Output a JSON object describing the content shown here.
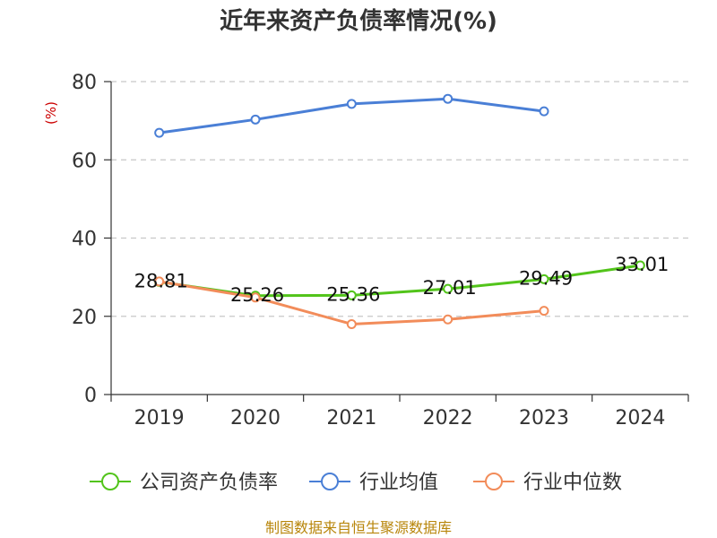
{
  "chart_data": {
    "type": "line",
    "title": "近年来资产负债率情况(%)",
    "ylabel": "(%)",
    "categories": [
      "2019",
      "2020",
      "2021",
      "2022",
      "2023",
      "2024"
    ],
    "ylim": [
      0,
      80
    ],
    "yticks": [
      0,
      20,
      40,
      60,
      80
    ],
    "grid": true,
    "legend_position": "bottom",
    "series": [
      {
        "name": "公司资产负债率",
        "color": "#52c41a",
        "values": [
          28.81,
          25.26,
          25.36,
          27.01,
          29.49,
          33.01
        ],
        "labels": [
          "28.81",
          "25.26",
          "25.36",
          "27.01",
          "29.49",
          "33.01"
        ]
      },
      {
        "name": "行业均值",
        "color": "#4a7fd6",
        "values": [
          66.9,
          70.3,
          74.3,
          75.6,
          72.4,
          null
        ]
      },
      {
        "name": "行业中位数",
        "color": "#f28c5a",
        "values": [
          28.9,
          24.8,
          18.0,
          19.2,
          21.4,
          null
        ]
      }
    ],
    "source": "制图数据来自恒生聚源数据库"
  }
}
